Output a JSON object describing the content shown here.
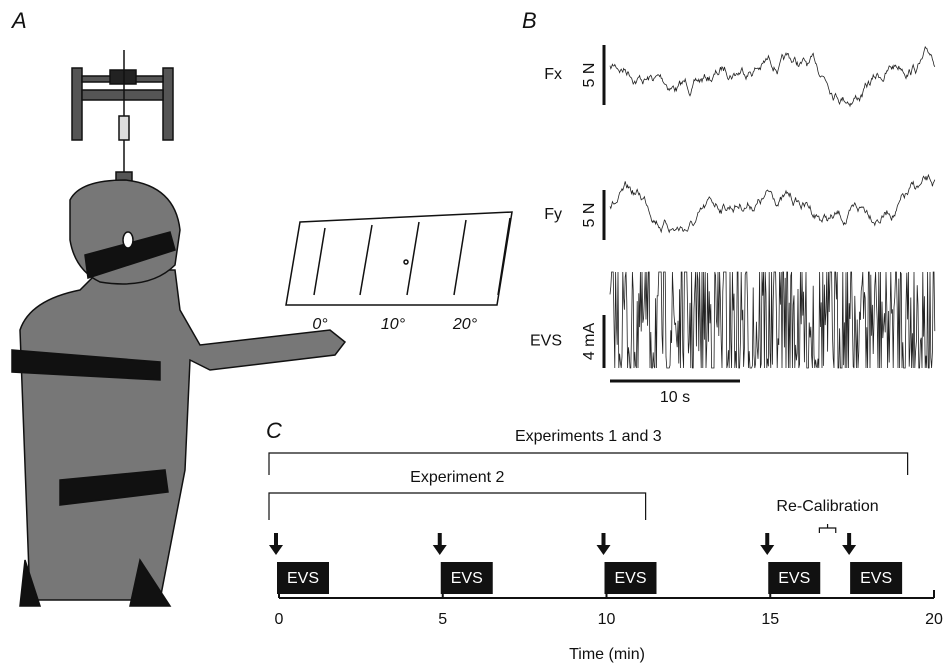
{
  "panel_a": {
    "label": "A",
    "angles": [
      "0°",
      "10°",
      "20°"
    ]
  },
  "panel_b": {
    "label": "B",
    "traces": [
      {
        "name": "Fx",
        "scale": "5 N"
      },
      {
        "name": "Fy",
        "scale": "5 N"
      },
      {
        "name": "EVS",
        "scale": "4 mA"
      }
    ],
    "time_scale": "10 s"
  },
  "panel_c": {
    "label": "C",
    "x_label": "Time (min)",
    "xlim": [
      0,
      20
    ],
    "xticks": [
      0,
      5,
      10,
      15,
      20
    ],
    "stimulus_label": "EVS",
    "stimuli": [
      0,
      5,
      10,
      15,
      17.5
    ],
    "spans": [
      {
        "label": "Experiments 1 and 3",
        "start": 0,
        "end": 19.5
      },
      {
        "label": "Experiment 2",
        "start": 0,
        "end": 11.5
      }
    ],
    "recalibration": {
      "label": "Re-Calibration",
      "start": 16.5,
      "end": 17
    }
  }
}
